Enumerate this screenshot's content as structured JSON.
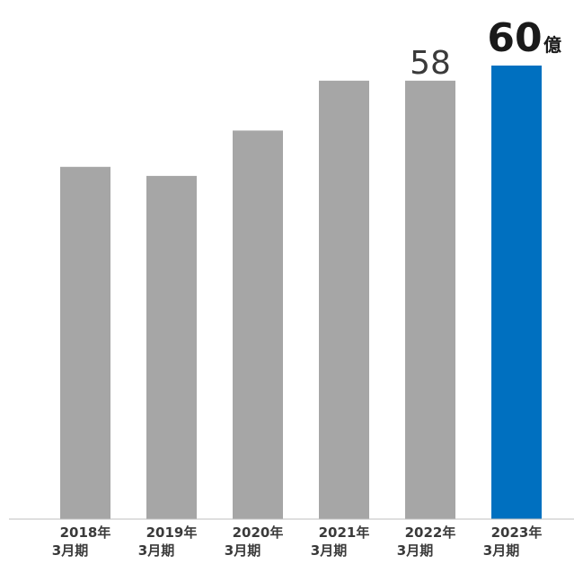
{
  "chart_data": {
    "type": "bar",
    "title": "",
    "xlabel": "",
    "ylabel": "",
    "categories": [
      {
        "line1": "2018年",
        "line2": "3月期"
      },
      {
        "line1": "2019年",
        "line2": "3月期"
      },
      {
        "line1": "2020年",
        "line2": "3月期"
      },
      {
        "line1": "2021年",
        "line2": "3月期"
      },
      {
        "line1": "2022年",
        "line2": "3月期"
      },
      {
        "line1": "2023年",
        "line2": "3月期"
      }
    ],
    "values": [
      46.6,
      45.4,
      51.4,
      58,
      58,
      60
    ],
    "ylim": [
      0,
      60
    ],
    "grid": false,
    "colors": {
      "default": "#a6a6a6",
      "highlight": "#0070c0",
      "baseline": "#bfbfbf"
    },
    "highlight_index": 5,
    "data_labels": [
      {
        "index": 4,
        "text": "58"
      },
      {
        "index": 5,
        "text": "60",
        "unit": "億"
      }
    ]
  }
}
